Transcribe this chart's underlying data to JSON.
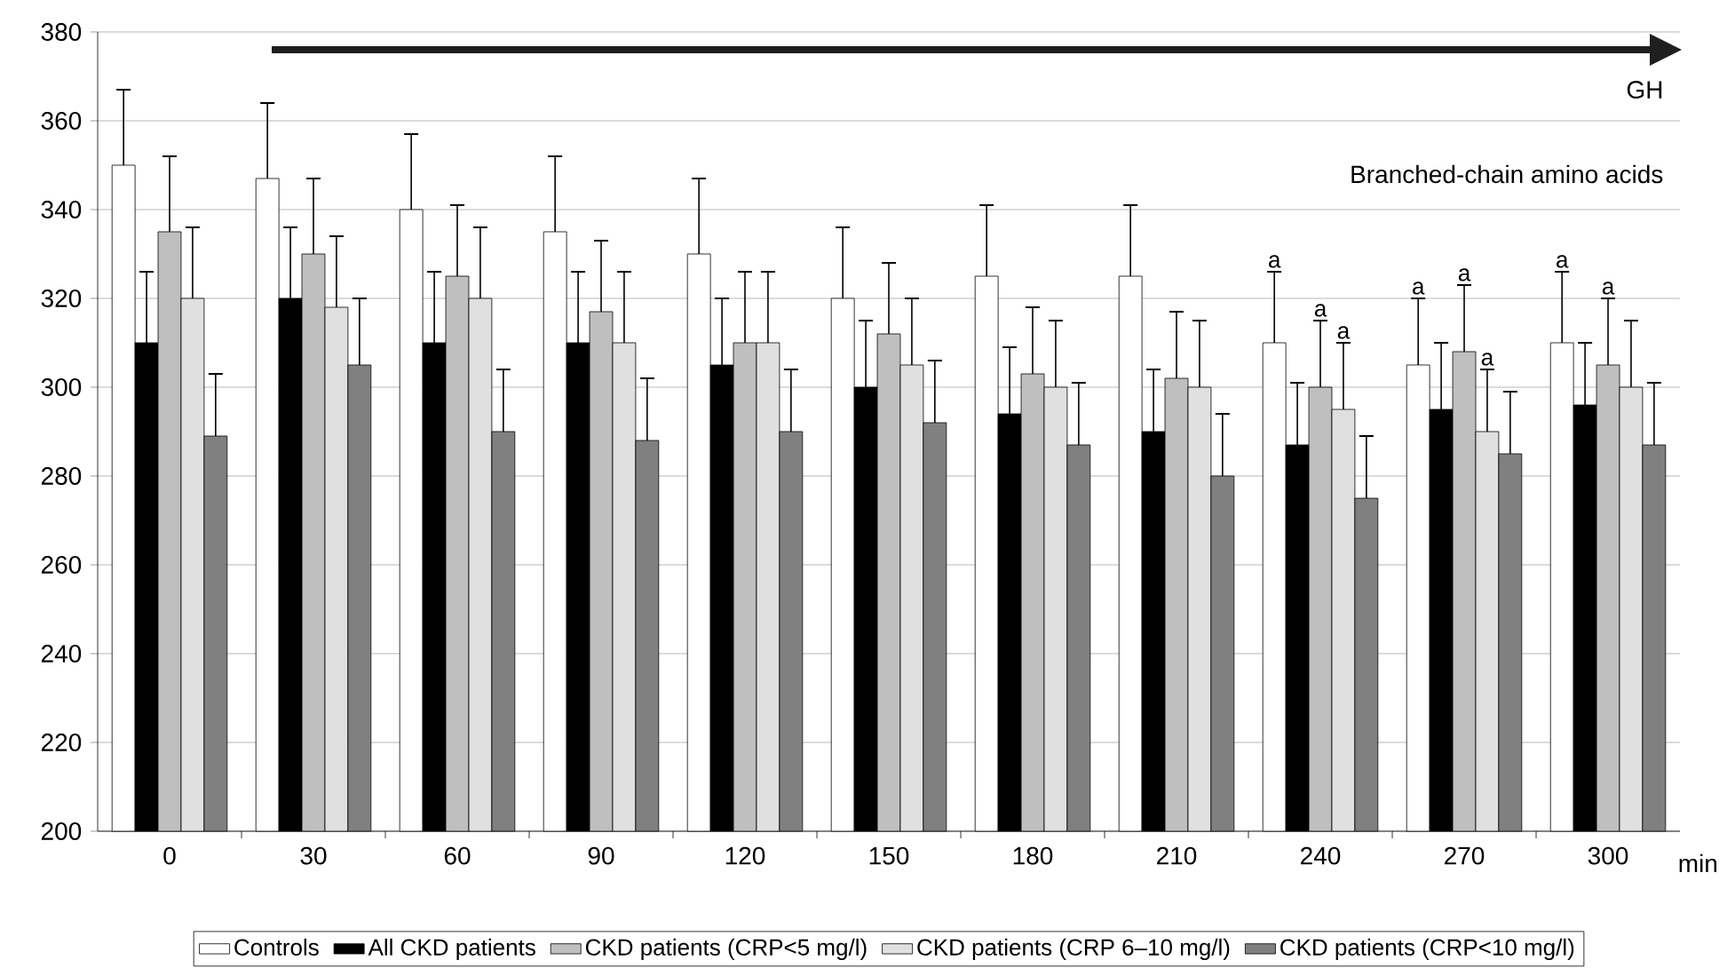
{
  "chart_data": {
    "type": "bar",
    "xlabel": "min",
    "categories": [
      "0",
      "30",
      "60",
      "90",
      "120",
      "150",
      "180",
      "210",
      "240",
      "270",
      "300"
    ],
    "series": [
      {
        "name": "Controls",
        "color": "#ffffff",
        "values": [
          350,
          347,
          340,
          335,
          330,
          320,
          325,
          325,
          310,
          305,
          310
        ],
        "errors": [
          17,
          17,
          17,
          17,
          17,
          16,
          16,
          16,
          16,
          15,
          16
        ]
      },
      {
        "name": "All CKD patients",
        "color": "#000000",
        "values": [
          310,
          320,
          310,
          310,
          305,
          300,
          294,
          290,
          287,
          295,
          296
        ],
        "errors": [
          16,
          16,
          16,
          16,
          15,
          15,
          15,
          14,
          14,
          15,
          14
        ]
      },
      {
        "name": "CKD patients (CRP<5 mg/l)",
        "color": "#bfbfbf",
        "values": [
          335,
          330,
          325,
          317,
          310,
          312,
          303,
          302,
          300,
          308,
          305
        ],
        "errors": [
          17,
          17,
          16,
          16,
          16,
          16,
          15,
          15,
          15,
          15,
          15
        ]
      },
      {
        "name": "CKD patients (CRP 6–10 mg/l)",
        "color": "#e0e0e0",
        "values": [
          320,
          318,
          320,
          310,
          310,
          305,
          300,
          300,
          295,
          290,
          300
        ],
        "errors": [
          16,
          16,
          16,
          16,
          16,
          15,
          15,
          15,
          15,
          14,
          15
        ]
      },
      {
        "name": "CKD patients (CRP<10 mg/l)",
        "color": "#808080",
        "values": [
          289,
          305,
          290,
          288,
          290,
          292,
          287,
          280,
          275,
          285,
          287
        ],
        "errors": [
          14,
          15,
          14,
          14,
          14,
          14,
          14,
          14,
          14,
          14,
          14
        ]
      }
    ],
    "ylim": [
      200,
      380
    ],
    "yticks": [
      200,
      220,
      240,
      260,
      280,
      300,
      320,
      340,
      360,
      380
    ],
    "grid": "y",
    "legend": "bottom",
    "annotations": [
      "GH",
      "Branched-chain amino acids",
      "a",
      "a",
      "a",
      "a",
      "a",
      "a",
      "a",
      "a"
    ]
  }
}
